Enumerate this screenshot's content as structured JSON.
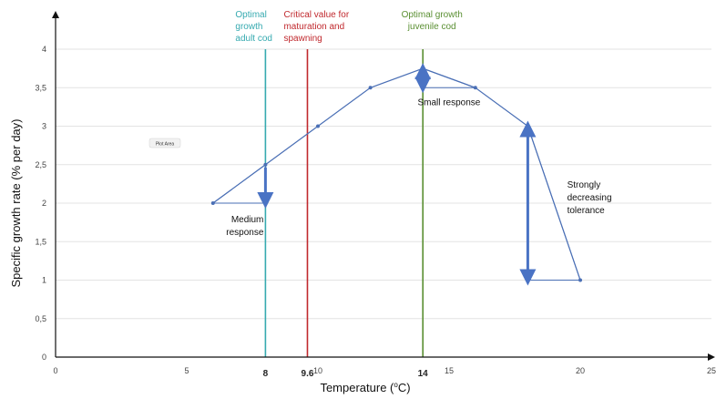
{
  "chart_data": {
    "type": "line",
    "title": "",
    "xlabel": "Temperature (°C)",
    "xlabel_parts": [
      "Temperature (",
      "o",
      "C)"
    ],
    "ylabel": "Specific growth rate (% per day)",
    "xlim": [
      0,
      25
    ],
    "ylim": [
      0,
      4
    ],
    "grid": "horizontal",
    "x_ticks": [
      {
        "value": 0,
        "label": "0"
      },
      {
        "value": 5,
        "label": "5"
      },
      {
        "value": 10,
        "label": "10"
      },
      {
        "value": 15,
        "label": "15"
      },
      {
        "value": 20,
        "label": "20"
      },
      {
        "value": 25,
        "label": "25"
      }
    ],
    "x_ticks_emphasized": [
      {
        "value": 8,
        "label": "8"
      },
      {
        "value": 9.6,
        "label": "9.6"
      },
      {
        "value": 14,
        "label": "14"
      }
    ],
    "y_ticks": [
      {
        "value": 0,
        "label": "0"
      },
      {
        "value": 0.5,
        "label": "0,5"
      },
      {
        "value": 1,
        "label": "1"
      },
      {
        "value": 1.5,
        "label": "1,5"
      },
      {
        "value": 2,
        "label": "2"
      },
      {
        "value": 2.5,
        "label": "2,5"
      },
      {
        "value": 3,
        "label": "3"
      },
      {
        "value": 3.5,
        "label": "3,5"
      },
      {
        "value": 4,
        "label": "4"
      }
    ],
    "series": [
      {
        "color": "#4a6fb5",
        "x": [
          6,
          8,
          10,
          12,
          14,
          16,
          18,
          20
        ],
        "y": [
          2.0,
          2.5,
          3.0,
          3.5,
          3.75,
          3.5,
          3.0,
          1.0
        ]
      }
    ],
    "reference_lines": [
      {
        "x": 8,
        "color": "#36aab0",
        "label_lines": [
          "Optimal",
          "growth",
          "adult cod"
        ],
        "label_align": "start"
      },
      {
        "x": 9.6,
        "color": "#c0282d",
        "label_lines": [
          "Critical value for",
          "maturation and",
          "spawning"
        ],
        "label_align": "start"
      },
      {
        "x": 14,
        "color": "#5a8f32",
        "label_lines": [
          "Optimal growth",
          "juvenile cod"
        ],
        "label_align": "middle"
      }
    ],
    "response_triangles": [
      {
        "x_start": 6,
        "x_end": 8,
        "y_high": 2.5,
        "y_low": 2.0
      },
      {
        "x_start": 14,
        "x_end": 16,
        "y_high": 3.75,
        "y_low": 3.5
      },
      {
        "x_start": 18,
        "x_end": 20,
        "y_high": 3.0,
        "y_low": 1.0
      }
    ],
    "response_arrows": [
      {
        "x": 8,
        "y_from": 2.5,
        "y_to": 2.0,
        "heads": "down"
      },
      {
        "x": 14,
        "y_from": 3.75,
        "y_to": 3.5,
        "heads": "both"
      },
      {
        "x": 18,
        "y_from": 3.0,
        "y_to": 1.0,
        "heads": "both"
      }
    ],
    "annotations": [
      {
        "lines": [
          "Medium",
          "response"
        ],
        "x": 8,
        "y": 1.8,
        "align": "end"
      },
      {
        "lines": [
          "Small response"
        ],
        "x": 13.8,
        "y": 3.32,
        "align": "start"
      },
      {
        "lines": [
          "Strongly",
          "decreasing",
          "tolerance"
        ],
        "x": 19.5,
        "y": 2.25,
        "align": "start"
      }
    ],
    "plot_area_label": "Plot Area",
    "colors": {
      "line": "#4a6fb5",
      "arrow": "#4a73c4",
      "grid": "#e3e3e3",
      "axis": "#111111"
    }
  }
}
